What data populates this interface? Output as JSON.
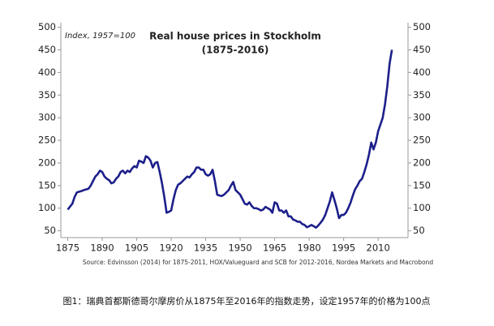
{
  "chart_data": {
    "type": "line",
    "title": "Real house prices in Stockholm",
    "subtitle": "(1875-2016)",
    "annotation": "Index, 1957=100",
    "source": "Source: Edvinsson (2014) for 1875-2011, HOX/Valueguard and SCB for 2012-2016, Nordea Markets and Macrobond",
    "xlim": [
      1872,
      2023
    ],
    "xticks": [
      1875,
      1890,
      1905,
      1920,
      1935,
      1950,
      1965,
      1980,
      1995,
      2010
    ],
    "ylim": [
      35,
      510
    ],
    "yticks": [
      50,
      100,
      150,
      200,
      250,
      300,
      350,
      400,
      450,
      500
    ],
    "y2lim": [
      35,
      510
    ],
    "y2ticks": [
      50,
      100,
      150,
      200,
      250,
      300,
      350,
      400,
      450,
      500
    ],
    "x": [
      1875,
      1877,
      1878,
      1879,
      1881,
      1882,
      1884,
      1885,
      1886,
      1887,
      1888,
      1889,
      1890,
      1891,
      1892,
      1893,
      1894,
      1895,
      1896,
      1897,
      1898,
      1899,
      1900,
      1901,
      1902,
      1903,
      1904,
      1905,
      1906,
      1907,
      1908,
      1909,
      1910,
      1911,
      1912,
      1913,
      1914,
      1915,
      1916,
      1917,
      1918,
      1919,
      1920,
      1921,
      1922,
      1923,
      1924,
      1925,
      1926,
      1927,
      1928,
      1929,
      1930,
      1931,
      1932,
      1933,
      1934,
      1935,
      1936,
      1937,
      1938,
      1939,
      1940,
      1941,
      1942,
      1943,
      1944,
      1945,
      1946,
      1947,
      1948,
      1949,
      1950,
      1951,
      1952,
      1953,
      1954,
      1955,
      1956,
      1957,
      1958,
      1959,
      1960,
      1961,
      1962,
      1963,
      1964,
      1965,
      1966,
      1967,
      1968,
      1969,
      1970,
      1971,
      1972,
      1973,
      1974,
      1975,
      1976,
      1977,
      1978,
      1979,
      1980,
      1981,
      1982,
      1983,
      1984,
      1985,
      1986,
      1987,
      1988,
      1989,
      1990,
      1991,
      1992,
      1993,
      1994,
      1995,
      1996,
      1997,
      1998,
      1999,
      2000,
      2001,
      2002,
      2003,
      2004,
      2005,
      2006,
      2007,
      2008,
      2009,
      2010,
      2011,
      2012,
      2013,
      2014,
      2015,
      2016
    ],
    "series": [
      {
        "name": "Real house prices",
        "color": "#1c1f8a",
        "values": [
          97,
          110,
          125,
          135,
          138,
          140,
          143,
          150,
          160,
          170,
          175,
          183,
          180,
          170,
          165,
          162,
          155,
          157,
          165,
          170,
          180,
          183,
          177,
          183,
          180,
          188,
          193,
          190,
          205,
          203,
          200,
          215,
          212,
          205,
          190,
          200,
          202,
          180,
          155,
          125,
          90,
          92,
          95,
          120,
          140,
          152,
          155,
          160,
          165,
          170,
          168,
          175,
          180,
          190,
          190,
          185,
          185,
          175,
          172,
          175,
          185,
          160,
          130,
          128,
          127,
          130,
          135,
          140,
          150,
          158,
          140,
          135,
          130,
          120,
          110,
          108,
          113,
          105,
          100,
          100,
          98,
          95,
          97,
          103,
          100,
          97,
          90,
          113,
          110,
          95,
          95,
          90,
          95,
          82,
          82,
          75,
          73,
          70,
          70,
          65,
          63,
          58,
          60,
          63,
          60,
          57,
          62,
          68,
          75,
          85,
          100,
          115,
          135,
          118,
          100,
          78,
          85,
          85,
          90,
          100,
          112,
          128,
          142,
          150,
          160,
          165,
          180,
          197,
          218,
          245,
          230,
          245,
          270,
          285,
          300,
          330,
          370,
          420,
          450
        ]
      }
    ]
  },
  "caption": "图1：瑞典首都斯德哥尔摩房价从1875年至2016年的指数走势，设定1957年的价格为100点"
}
